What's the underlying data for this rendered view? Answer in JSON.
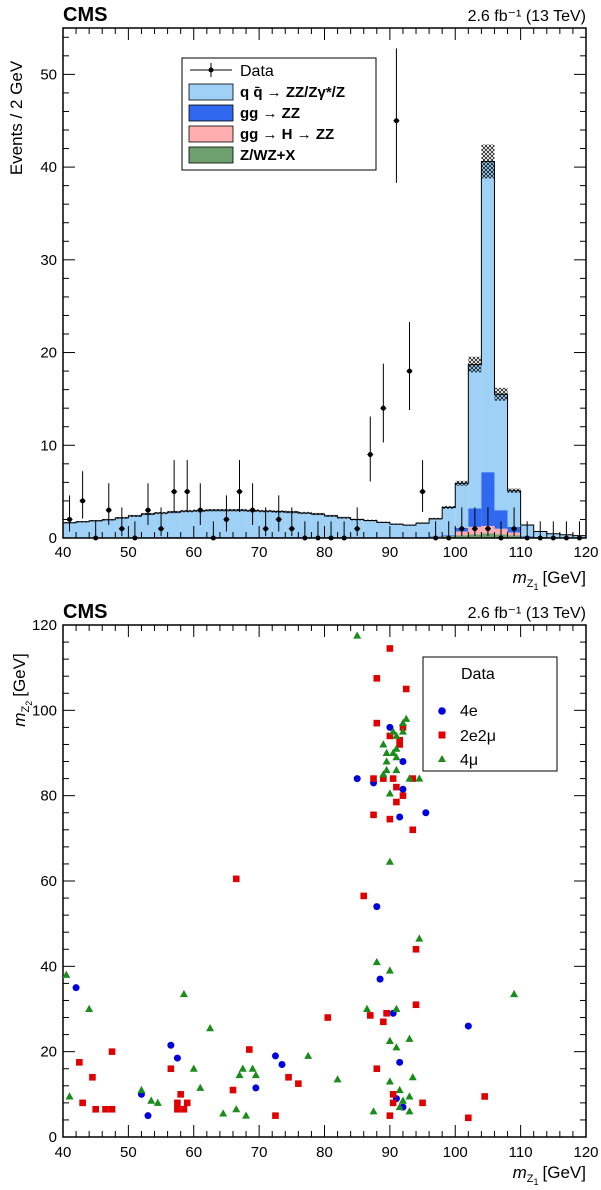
{
  "chart_data": [
    {
      "type": "bar",
      "experiment_label": "CMS",
      "luminosity_text": "2.6 fb⁻¹ (13 TeV)",
      "xlabel": "m",
      "xlabel_subscript": "Z",
      "xlabel_sub_index": "1",
      "xlabel_unit": "[GeV]",
      "ylabel": "Events / 2 GeV",
      "xlim": [
        40,
        120
      ],
      "ylim": [
        0,
        55
      ],
      "x_ticks": [
        40,
        50,
        60,
        70,
        80,
        90,
        100,
        110,
        120
      ],
      "y_ticks": [
        0,
        10,
        20,
        30,
        40,
        50
      ],
      "bin_width": 2,
      "legend_position": "top-center",
      "stack_order": [
        "zx",
        "ggH",
        "ggZZ",
        "qqZZ"
      ],
      "series": [
        {
          "key": "qqZZ",
          "name": "q q̄ → ZZ/Zγ*/Z",
          "color": "#9fd0f5",
          "values": [
            1.6,
            1.7,
            1.8,
            1.9,
            2.1,
            2.3,
            2.5,
            2.6,
            2.7,
            2.8,
            2.85,
            2.9,
            2.9,
            2.9,
            2.85,
            2.8,
            2.75,
            2.7,
            2.6,
            2.5,
            2.3,
            2.1,
            1.9,
            1.8,
            1.6,
            1.4,
            1.3,
            1.5,
            1.9,
            3.0,
            4.8,
            15.5,
            33.5,
            12.5,
            3.9,
            1.2,
            0.6,
            0.4,
            0.3,
            0.2
          ]
        },
        {
          "key": "ggZZ",
          "name": "gg → ZZ",
          "color": "#3069f0",
          "values": [
            0.03,
            0.03,
            0.03,
            0.04,
            0.04,
            0.05,
            0.05,
            0.05,
            0.06,
            0.06,
            0.06,
            0.06,
            0.06,
            0.06,
            0.06,
            0.06,
            0.06,
            0.06,
            0.06,
            0.05,
            0.05,
            0.05,
            0.05,
            0.05,
            0.05,
            0.05,
            0.05,
            0.06,
            0.08,
            0.1,
            0.4,
            2.0,
            5.8,
            2.0,
            0.6,
            0.1,
            0.05,
            0.03,
            0.03,
            0.03
          ]
        },
        {
          "key": "ggH",
          "name": "gg → H → ZZ",
          "color": "#ffaeb0",
          "values": [
            0,
            0,
            0,
            0,
            0,
            0,
            0,
            0,
            0,
            0,
            0,
            0,
            0,
            0,
            0,
            0,
            0,
            0,
            0,
            0,
            0,
            0,
            0,
            0,
            0,
            0,
            0,
            0,
            0,
            0,
            0.4,
            0.8,
            0.8,
            0.6,
            0.3,
            0,
            0,
            0,
            0,
            0
          ]
        },
        {
          "key": "zx",
          "name": "Z/WZ+X",
          "color": "#6fa06f",
          "values": [
            0.02,
            0.02,
            0.03,
            0.03,
            0.03,
            0.03,
            0.04,
            0.04,
            0.04,
            0.04,
            0.04,
            0.04,
            0.04,
            0.04,
            0.04,
            0.04,
            0.04,
            0.04,
            0.04,
            0.04,
            0.04,
            0.04,
            0.04,
            0.04,
            0.04,
            0.04,
            0.04,
            0.05,
            0.1,
            0.2,
            0.3,
            0.4,
            0.5,
            0.4,
            0.3,
            0.1,
            0.05,
            0.03,
            0.02,
            0.02
          ]
        }
      ],
      "data_series": {
        "name": "Data",
        "x": [
          41,
          43,
          45,
          47,
          49,
          51,
          53,
          55,
          57,
          59,
          61,
          63,
          65,
          67,
          69,
          71,
          73,
          75,
          77,
          79,
          81,
          83,
          85,
          87,
          89,
          91,
          93,
          95,
          97,
          99,
          101,
          103,
          105,
          107,
          109,
          111,
          113,
          115,
          117,
          119
        ],
        "y": [
          2,
          4,
          0,
          3,
          1,
          0,
          3,
          1,
          5,
          5,
          3,
          0,
          2,
          5,
          3,
          1,
          2,
          1,
          0,
          0,
          0,
          0,
          1,
          9,
          14,
          45,
          18,
          5,
          0,
          0,
          1,
          1,
          1,
          0,
          1,
          0,
          0,
          0,
          0,
          0
        ],
        "yerr_up": [
          2.6,
          3.2,
          1.8,
          2.9,
          2.3,
          1.8,
          2.9,
          2.3,
          3.4,
          3.4,
          2.9,
          1.8,
          2.6,
          3.4,
          2.9,
          2.3,
          2.6,
          2.3,
          1.8,
          1.8,
          1.8,
          1.8,
          2.3,
          4.1,
          4.8,
          7.8,
          5.3,
          3.4,
          1.8,
          1.8,
          2.3,
          2.3,
          2.3,
          1.8,
          2.3,
          1.8,
          1.8,
          1.8,
          1.8,
          1.8
        ],
        "yerr_down": [
          1.3,
          1.9,
          0,
          1.6,
          0.8,
          0,
          1.6,
          0.8,
          2.2,
          2.2,
          1.6,
          0,
          1.3,
          2.2,
          1.6,
          0.8,
          1.3,
          0.8,
          0,
          0,
          0,
          0,
          0.8,
          2.9,
          3.7,
          6.7,
          4.2,
          2.2,
          0,
          0,
          0.8,
          0.8,
          0.8,
          0,
          0.8,
          0,
          0,
          0,
          0,
          0
        ]
      }
    },
    {
      "type": "scatter",
      "experiment_label": "CMS",
      "luminosity_text": "2.6 fb⁻¹ (13 TeV)",
      "xlabel": "m",
      "xlabel_subscript": "Z",
      "xlabel_sub_index": "1",
      "xlabel_unit": "[GeV]",
      "ylabel": "m",
      "ylabel_subscript": "Z",
      "ylabel_sub_index": "2",
      "ylabel_unit": "[GeV]",
      "xlim": [
        40,
        120
      ],
      "ylim": [
        0,
        120
      ],
      "x_ticks": [
        40,
        50,
        60,
        70,
        80,
        90,
        100,
        110,
        120
      ],
      "y_ticks": [
        0,
        20,
        40,
        60,
        80,
        100,
        120
      ],
      "legend_title": "Data",
      "legend_position": "top-right",
      "series": [
        {
          "name": "4e",
          "marker": "circle",
          "color": "#0000e0",
          "points": [
            [
              42,
              35
            ],
            [
              52,
              10
            ],
            [
              53,
              5
            ],
            [
              56.5,
              21.5
            ],
            [
              57.5,
              18.5
            ],
            [
              72.5,
              19
            ],
            [
              73.5,
              17
            ],
            [
              85,
              84
            ],
            [
              87.5,
              83
            ],
            [
              88,
              54
            ],
            [
              88.5,
              37
            ],
            [
              90,
              96
            ],
            [
              90.5,
              29
            ],
            [
              91,
              9
            ],
            [
              91.5,
              17.5
            ],
            [
              91.5,
              75
            ],
            [
              92,
              81.5
            ],
            [
              92,
              88
            ],
            [
              95.5,
              76
            ],
            [
              102,
              26
            ],
            [
              69.5,
              11.5
            ],
            [
              92,
              7
            ]
          ]
        },
        {
          "name": "2e2μ",
          "marker": "square",
          "color": "#e00000",
          "points": [
            [
              42.5,
              17.5
            ],
            [
              43,
              8
            ],
            [
              44.5,
              14
            ],
            [
              45,
              6.5
            ],
            [
              46.5,
              6.5
            ],
            [
              47.5,
              20
            ],
            [
              47.5,
              6.5
            ],
            [
              56.5,
              16
            ],
            [
              57.5,
              8
            ],
            [
              57.5,
              6.5
            ],
            [
              58,
              10
            ],
            [
              58.5,
              6.5
            ],
            [
              59,
              8
            ],
            [
              66,
              11
            ],
            [
              66.5,
              60.5
            ],
            [
              68.5,
              20.5
            ],
            [
              72.5,
              5
            ],
            [
              74.5,
              14
            ],
            [
              76,
              12.5
            ],
            [
              80.5,
              28
            ],
            [
              86,
              56.5
            ],
            [
              87,
              28.5
            ],
            [
              87.5,
              75.5
            ],
            [
              87.5,
              84
            ],
            [
              88,
              107.5
            ],
            [
              88,
              97
            ],
            [
              89,
              27
            ],
            [
              89,
              84
            ],
            [
              89.5,
              29
            ],
            [
              90,
              5
            ],
            [
              90,
              74.5
            ],
            [
              90,
              114.5
            ],
            [
              90,
              94
            ],
            [
              90.5,
              84
            ],
            [
              90.5,
              10
            ],
            [
              91,
              78.5
            ],
            [
              91,
              82
            ],
            [
              91.5,
              92
            ],
            [
              91.5,
              93
            ],
            [
              92,
              80
            ],
            [
              92,
              96
            ],
            [
              92.5,
              105
            ],
            [
              93.5,
              84
            ],
            [
              93.5,
              72
            ],
            [
              94,
              31
            ],
            [
              94,
              44
            ],
            [
              95,
              8
            ],
            [
              102,
              4.5
            ],
            [
              104.5,
              9.5
            ],
            [
              88,
              16
            ],
            [
              90.5,
              8
            ]
          ]
        },
        {
          "name": "4μ",
          "marker": "triangle",
          "color": "#1a8c1a",
          "points": [
            [
              40.5,
              38
            ],
            [
              41,
              9.5
            ],
            [
              44,
              30
            ],
            [
              52,
              11
            ],
            [
              53.5,
              8.5
            ],
            [
              54.5,
              8
            ],
            [
              58.5,
              33.5
            ],
            [
              60,
              16
            ],
            [
              61,
              11.5
            ],
            [
              62.5,
              25.5
            ],
            [
              64.5,
              5.5
            ],
            [
              66.5,
              6.5
            ],
            [
              67,
              14.5
            ],
            [
              67.5,
              16
            ],
            [
              68,
              5
            ],
            [
              69,
              16
            ],
            [
              69.5,
              14.5
            ],
            [
              77.5,
              19
            ],
            [
              82,
              13.5
            ],
            [
              85,
              117.5
            ],
            [
              86.5,
              30
            ],
            [
              87.5,
              6
            ],
            [
              88,
              41
            ],
            [
              89,
              85
            ],
            [
              89,
              92
            ],
            [
              89.5,
              88
            ],
            [
              89.5,
              90
            ],
            [
              89.5,
              86
            ],
            [
              90,
              64.5
            ],
            [
              90,
              22.5
            ],
            [
              90,
              39
            ],
            [
              90,
              80.5
            ],
            [
              90.5,
              95
            ],
            [
              90.5,
              90
            ],
            [
              91,
              86
            ],
            [
              91,
              89
            ],
            [
              91,
              91
            ],
            [
              91,
              94
            ],
            [
              91,
              21
            ],
            [
              91.5,
              11
            ],
            [
              91.5,
              7
            ],
            [
              92,
              95
            ],
            [
              92,
              8.5
            ],
            [
              92,
              97
            ],
            [
              92.5,
              98
            ],
            [
              93,
              6
            ],
            [
              93,
              84
            ],
            [
              93,
              23
            ],
            [
              93.5,
              14
            ],
            [
              94.5,
              84
            ],
            [
              94.5,
              46.5
            ],
            [
              109,
              33.5
            ],
            [
              93,
              9.5
            ],
            [
              91,
              30
            ],
            [
              90,
              13
            ]
          ]
        }
      ]
    }
  ]
}
